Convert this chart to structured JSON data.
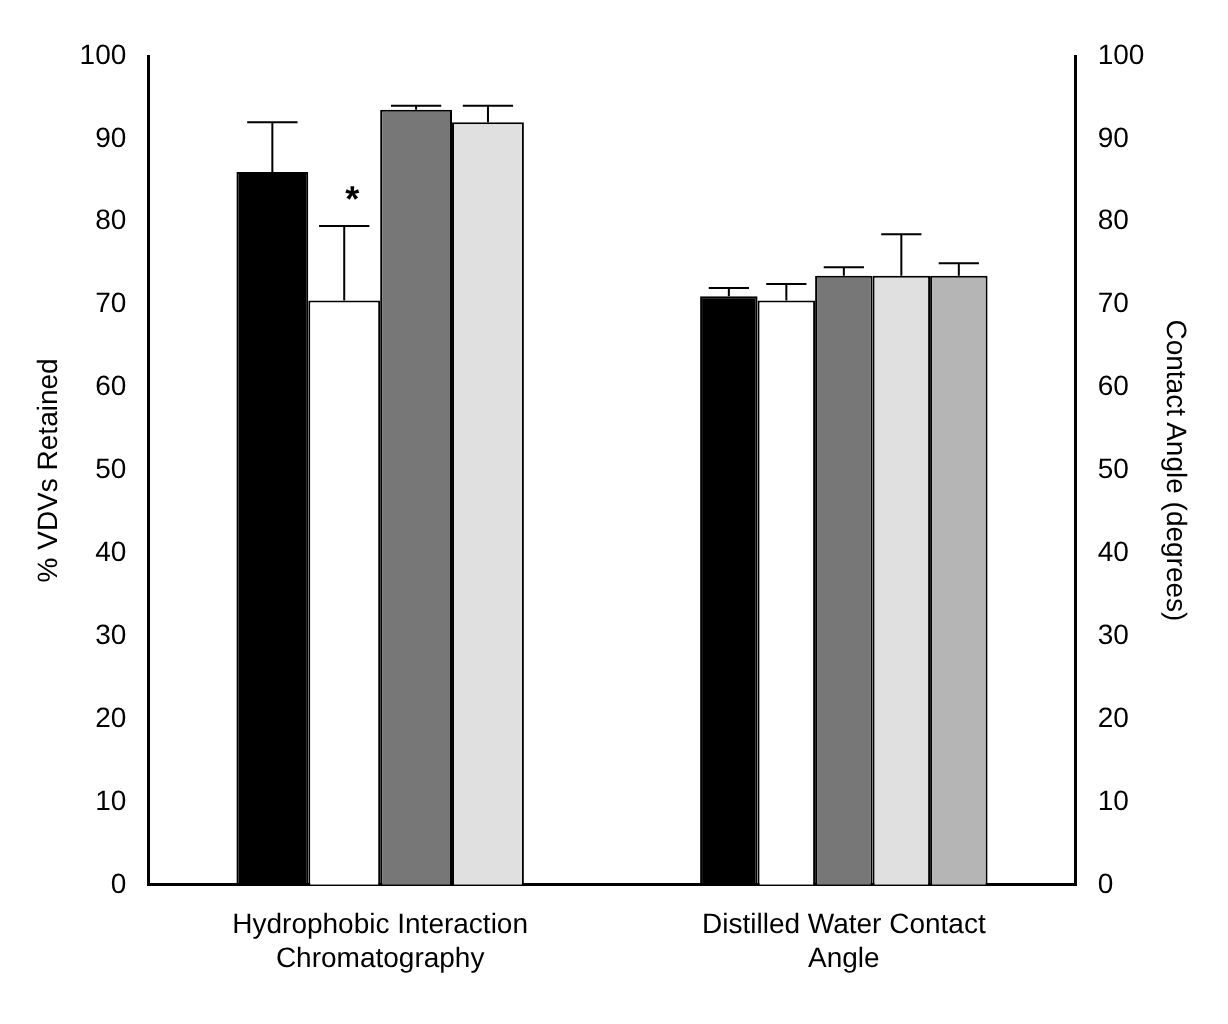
{
  "chart_data": {
    "type": "bar",
    "ylabel": "% VDVs Retained",
    "y2label": "Contact Angle (degrees)",
    "categories": [
      "Hydrophobic Interaction Chromatography",
      "Distilled Water Contact Angle"
    ],
    "series": [
      {
        "color": "#000000",
        "values": [
          86,
          71
        ],
        "errors": [
          [
            86,
            92
          ],
          [
            71,
            72
          ]
        ]
      },
      {
        "color": "#ffffff",
        "values": [
          70.5,
          70.5
        ],
        "errors": [
          [
            70.5,
            79.5
          ],
          [
            70.5,
            72.5
          ]
        ]
      },
      {
        "color": "#777777",
        "values": [
          93.5,
          73.5
        ],
        "errors": [
          [
            93.5,
            94
          ],
          [
            73.5,
            74.5
          ]
        ]
      },
      {
        "color": "#e0e0e0",
        "values": [
          92,
          73.5
        ],
        "errors": [
          [
            92,
            94
          ],
          [
            73.5,
            78.5
          ]
        ]
      },
      {
        "color": "#b5b5b5",
        "values": [
          null,
          73.5
        ],
        "errors": [
          null,
          [
            73.5,
            75
          ]
        ]
      }
    ],
    "ylim": [
      0,
      100
    ],
    "yticks": [
      0,
      10,
      20,
      30,
      40,
      50,
      60,
      70,
      80,
      90,
      100
    ],
    "y2lim": [
      0,
      100
    ],
    "y2ticks": [
      0,
      10,
      20,
      30,
      40,
      50,
      60,
      70,
      80,
      90,
      100
    ],
    "annotations": [
      {
        "text": "*",
        "x": "Hydrophobic Interaction Chromatography",
        "y": 84
      }
    ],
    "grid": false,
    "legend": false
  }
}
